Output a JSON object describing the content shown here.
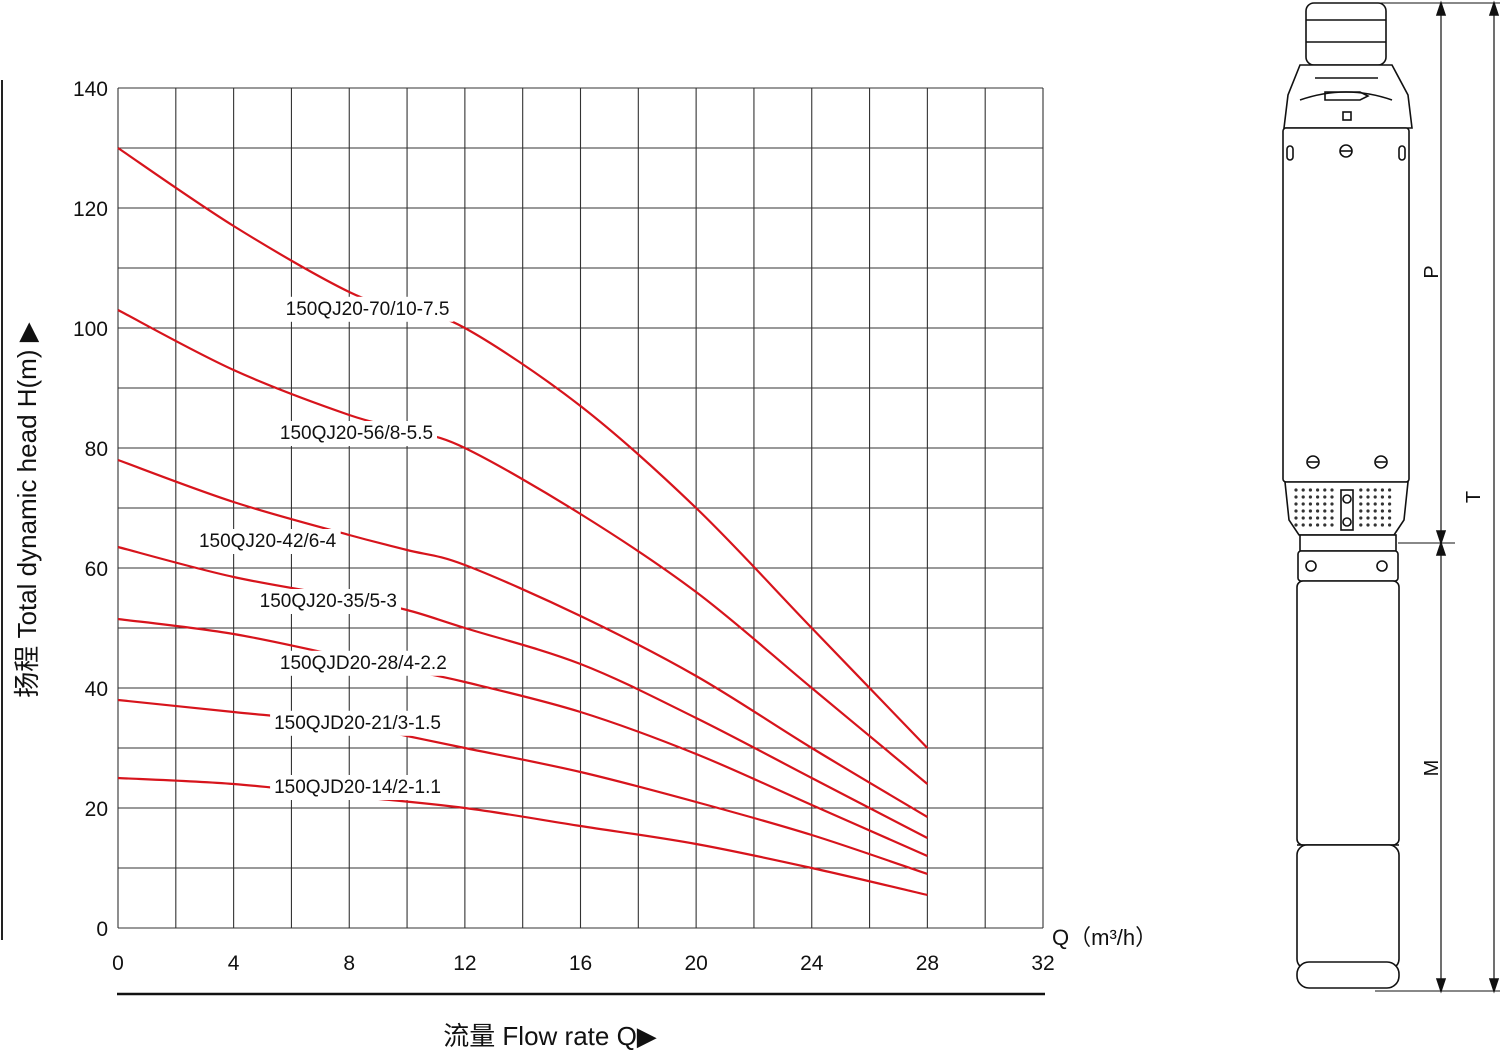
{
  "chart_data": {
    "type": "line",
    "xlabel": "流量 Flow rate Q▶",
    "ylabel": "扬程 Total dynamic head H(m) ▶",
    "x_unit_label": "Q（m³/h）",
    "xlim": [
      0,
      32
    ],
    "ylim": [
      0,
      140
    ],
    "x_ticks": [
      0,
      4,
      8,
      12,
      16,
      20,
      24,
      28,
      32
    ],
    "y_ticks": [
      0,
      20,
      40,
      60,
      80,
      100,
      120,
      140
    ],
    "grid": true,
    "line_color": "#d7141c",
    "series": [
      {
        "name": "150QJ20-70/10-7.5",
        "x": [
          0,
          4,
          8,
          10,
          12,
          16,
          20,
          24,
          28
        ],
        "y": [
          130,
          117,
          106,
          103,
          100,
          87,
          70,
          50,
          30
        ]
      },
      {
        "name": "150QJ20-56/8-5.5",
        "x": [
          0,
          4,
          8,
          10,
          12,
          16,
          20,
          24,
          28
        ],
        "y": [
          103,
          93,
          85.5,
          83,
          80,
          69,
          56,
          40,
          24
        ]
      },
      {
        "name": "150QJ20-42/6-4",
        "x": [
          0,
          4,
          8,
          10,
          12,
          16,
          20,
          24,
          28
        ],
        "y": [
          78,
          71,
          65.5,
          63,
          60.5,
          52,
          42,
          30,
          18.5
        ]
      },
      {
        "name": "150QJ20-35/5-3",
        "x": [
          0,
          4,
          8,
          10,
          12,
          16,
          20,
          24,
          28
        ],
        "y": [
          63.5,
          58.5,
          55,
          53,
          50,
          44,
          35,
          25,
          15
        ]
      },
      {
        "name": "150QJD20-28/4-2.2",
        "x": [
          0,
          4,
          8,
          10,
          12,
          16,
          20,
          24,
          28
        ],
        "y": [
          51.5,
          49,
          45,
          43,
          41,
          36,
          29,
          20.5,
          12
        ]
      },
      {
        "name": "150QJD20-21/3-1.5",
        "x": [
          0,
          4,
          8,
          10,
          12,
          16,
          20,
          24,
          28
        ],
        "y": [
          38,
          36,
          34,
          32,
          30,
          26,
          21,
          15.5,
          9
        ]
      },
      {
        "name": "150QJD20-14/2-1.1",
        "x": [
          0,
          4,
          8,
          12,
          16,
          20,
          24,
          28
        ],
        "y": [
          25,
          24,
          22,
          20,
          17,
          14,
          10,
          5.5
        ]
      }
    ]
  },
  "pump_diagram": {
    "dimension_labels": [
      "P",
      "T",
      "M"
    ]
  }
}
